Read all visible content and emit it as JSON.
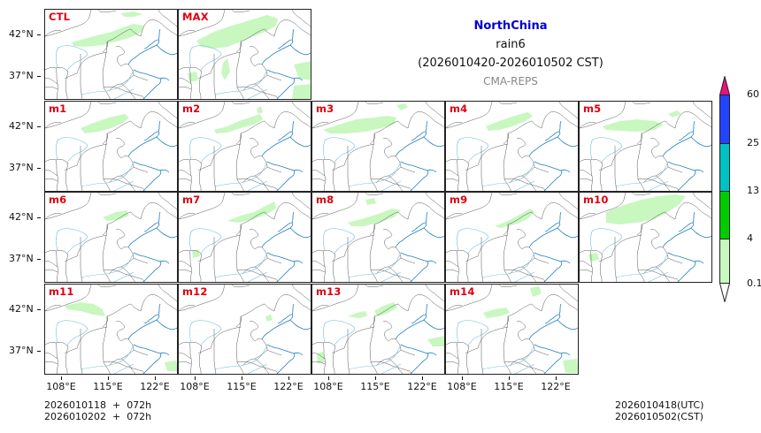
{
  "title": {
    "region": "NorthChina",
    "region_color": "#0000cc",
    "variable": "rain6",
    "period": "(2026010420-2026010502 CST)",
    "model": "CMA-REPS"
  },
  "axes": {
    "y_ticks": [
      "42°N",
      "37°N"
    ],
    "x_ticks": [
      "108°E",
      "115°E",
      "122°E"
    ]
  },
  "colorbar": {
    "levels": [
      "0.1",
      "4",
      "13",
      "25",
      "60"
    ],
    "colors": {
      "over": "#e8117f",
      "60_above": "#e8117f",
      "25_60": "#2244ff",
      "13_25": "#00c2c2",
      "4_13": "#00cc00",
      "0.1_4": "#c8f7c0",
      "under": "#ffffff"
    }
  },
  "footer": {
    "init_line1": "2026010118  +  072h",
    "init_line2": "2026010202  +  072h",
    "valid_utc": "2026010418(UTC)",
    "valid_cst": "2026010502(CST)"
  },
  "panels": [
    {
      "label": "CTL",
      "row": 0,
      "col": 0,
      "rain": [
        "30,37 55,30 75,25 88,20 100,16 112,18 108,26 95,32 80,36 65,40 45,42 32,41",
        "85,4 100,2 110,5 100,8 90,8"
      ]
    },
    {
      "label": "MAX",
      "row": 0,
      "col": 1,
      "rain": [
        "20,35 40,25 60,18 80,12 100,6 112,10 110,18 100,24 85,30 70,36 55,42 40,44 25,42",
        "10,72 20,70 22,80 12,82",
        "130,62 150,58 150,80 136,78",
        "130,86 150,84 150,102 128,102",
        "50,60 55,55 58,70 52,80 48,72"
      ]
    },
    {
      "label": "m1",
      "row": 1,
      "col": 0,
      "rain": [
        "40,30 55,24 72,18 90,14 95,18 88,24 75,30 60,34 45,36"
      ]
    },
    {
      "label": "m2",
      "row": 1,
      "col": 1,
      "rain": [
        "40,32 55,28 68,22 80,18 92,14 95,20 85,26 70,30 55,35 42,36",
        "88,8 93,5 95,12 90,14"
      ]
    },
    {
      "label": "m3",
      "row": 1,
      "col": 2,
      "rain": [
        "12,32 30,26 50,20 70,18 85,16 95,18 92,26 78,30 60,34 40,36 20,36",
        "95,4 105,2 108,6 100,10"
      ]
    },
    {
      "label": "m4",
      "row": 1,
      "col": 3,
      "rain": [
        "45,28 60,22 78,16 92,12 98,16 90,22 75,28 60,32 48,33"
      ]
    },
    {
      "label": "m5",
      "row": 1,
      "col": 4,
      "rain": [
        "26,28 45,22 65,20 85,22 95,26 85,32 65,34 45,33 30,32",
        "100,14 110,10 115,14 105,18"
      ]
    },
    {
      "label": "m6",
      "row": 2,
      "col": 0,
      "rain": [
        "65,28 80,22 92,20 95,26 85,30 70,32"
      ]
    },
    {
      "label": "m7",
      "row": 2,
      "col": 1,
      "rain": [
        "55,32 70,26 85,22 100,14 108,10 110,18 100,24 85,30 68,34",
        "15,66 22,64 24,72 16,74"
      ]
    },
    {
      "label": "m8",
      "row": 2,
      "col": 2,
      "rain": [
        "40,34 55,30 75,24 90,18 100,20 92,28 75,34 58,38 44,38",
        "60,8 70,6 72,12 62,14"
      ]
    },
    {
      "label": "m9",
      "row": 2,
      "col": 3,
      "rain": [
        "55,38 70,32 85,24 95,18 100,22 92,30 78,36 62,40"
      ]
    },
    {
      "label": "m10",
      "row": 2,
      "col": 4,
      "rain": [
        "30,22 50,14 70,8 90,4 108,2 120,4 112,14 100,22 85,30 65,34 45,36 30,34",
        "10,70 20,68 22,76 12,78"
      ]
    },
    {
      "label": "m11",
      "row": 3,
      "col": 0,
      "rain": [
        "22,24 40,20 55,22 65,28 68,36 55,34 40,30 25,28",
        "135,88 148,86 150,98 138,98"
      ]
    },
    {
      "label": "m12",
      "row": 3,
      "col": 1,
      "rain": [
        "98,36 104,34 106,40 100,42"
      ]
    },
    {
      "label": "m13",
      "row": 3,
      "col": 2,
      "rain": [
        "40,36 50,32 60,30 62,36 52,38",
        "70,30 80,24 92,20 96,26 86,32 74,36",
        "130,62 150,58 150,70 136,70",
        "5,78 12,76 14,88 6,90"
      ]
    },
    {
      "label": "m14",
      "row": 3,
      "col": 3,
      "rain": [
        "42,32 55,28 68,26 72,32 60,36 46,38",
        "95,4 105,2 108,10 98,14",
        "132,86 148,84 150,100 135,100"
      ]
    }
  ]
}
